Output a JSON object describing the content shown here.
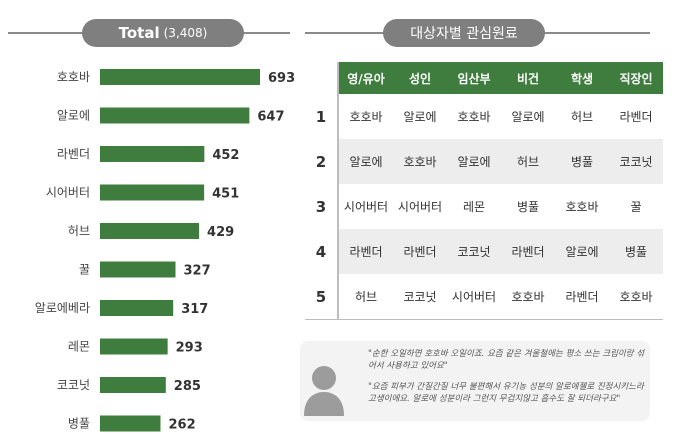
{
  "left_header": {
    "title": "Total",
    "count": "(3,408)"
  },
  "right_header": {
    "title": "대상자별 관심원료"
  },
  "chart_data": {
    "type": "bar",
    "orientation": "horizontal",
    "title": "Total",
    "subtitle": "(3,408)",
    "categories": [
      "호호바",
      "알로에",
      "라벤더",
      "시어버터",
      "허브",
      "꿀",
      "알로에베라",
      "레몬",
      "코코넛",
      "병풀"
    ],
    "values": [
      693,
      647,
      452,
      451,
      429,
      327,
      317,
      293,
      285,
      262
    ],
    "xlim": [
      0,
      693
    ],
    "bar_color": "#3e7d3e",
    "grid": false,
    "legend": "none"
  },
  "table": {
    "columns": [
      "영/유아",
      "성인",
      "임산부",
      "비건",
      "학생",
      "직장인"
    ],
    "rows": [
      {
        "rank": "1",
        "cells": [
          "호호바",
          "알로에",
          "호호바",
          "알로에",
          "허브",
          "라벤더"
        ]
      },
      {
        "rank": "2",
        "cells": [
          "알로에",
          "호호바",
          "알로에",
          "허브",
          "병풀",
          "코코넛"
        ]
      },
      {
        "rank": "3",
        "cells": [
          "시어버터",
          "시어버터",
          "레몬",
          "병풀",
          "호호바",
          "꿀"
        ]
      },
      {
        "rank": "4",
        "cells": [
          "라벤더",
          "라벤더",
          "코코넛",
          "라벤더",
          "알로에",
          "병풀"
        ]
      },
      {
        "rank": "5",
        "cells": [
          "허브",
          "코코넛",
          "시어버터",
          "호호바",
          "라벤더",
          "호호바"
        ]
      }
    ],
    "header_color": "#3e7d3e"
  },
  "quotes": [
    "\"순한 오일하면 호호바 오일이죠. 요즘 같은 겨울철에는 평소 쓰는 크림이랑 섞어서 사용하고 있어요\"",
    "\"요즘 피부가 간질간질 너무 불편해서 유기농 성분의 알로에젤로 진정시키느라 고생이에요. 알로에 성분이라 그런지 무겁지않고 흡수도 잘 되더라구요\""
  ],
  "icons": {
    "avatar": "person-silhouette-icon"
  }
}
